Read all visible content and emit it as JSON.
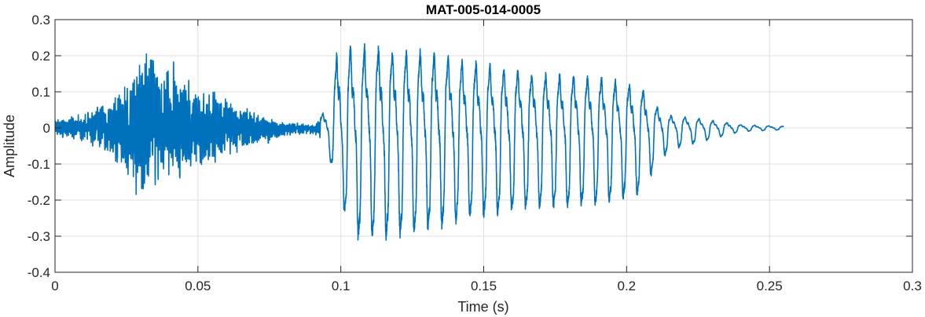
{
  "chart_data": {
    "type": "line",
    "title": "MAT-005-014-0005",
    "xlabel": "Time (s)",
    "ylabel": "Amplitude",
    "xlim": [
      0,
      0.3
    ],
    "ylim": [
      -0.4,
      0.3
    ],
    "x_ticks": [
      0,
      0.05,
      0.1,
      0.15,
      0.2,
      0.25,
      0.3
    ],
    "x_tick_labels": [
      "0",
      "0.05",
      "0.1",
      "0.15",
      "0.2",
      "0.25",
      "0.3"
    ],
    "y_ticks": [
      0.3,
      0.2,
      0.1,
      0,
      -0.1,
      -0.2,
      -0.3,
      -0.4
    ],
    "y_tick_labels": [
      "0.3",
      "0.2",
      "0.1",
      "0",
      "-0.1",
      "-0.2",
      "-0.3",
      "-0.4"
    ],
    "grid": true,
    "line_color": "#0072BD",
    "series": [
      {
        "x_range": [
          0,
          0.255
        ],
        "envelope": [
          {
            "t": 0.0,
            "max": 0.03,
            "min": -0.03
          },
          {
            "t": 0.01,
            "max": 0.05,
            "min": -0.05
          },
          {
            "t": 0.02,
            "max": 0.1,
            "min": -0.1
          },
          {
            "t": 0.025,
            "max": 0.16,
            "min": -0.17
          },
          {
            "t": 0.028,
            "max": 0.2,
            "min": -0.2
          },
          {
            "t": 0.033,
            "max": 0.25,
            "min": -0.22
          },
          {
            "t": 0.04,
            "max": 0.22,
            "min": -0.18
          },
          {
            "t": 0.05,
            "max": 0.14,
            "min": -0.13
          },
          {
            "t": 0.06,
            "max": 0.09,
            "min": -0.1
          },
          {
            "t": 0.07,
            "max": 0.05,
            "min": -0.06
          },
          {
            "t": 0.08,
            "max": 0.02,
            "min": -0.03
          },
          {
            "t": 0.09,
            "max": 0.01,
            "min": -0.02
          },
          {
            "t": 0.095,
            "max": 0.06,
            "min": -0.04
          },
          {
            "t": 0.099,
            "max": 0.25,
            "min": -0.19
          },
          {
            "t": 0.105,
            "max": 0.26,
            "min": -0.3
          },
          {
            "t": 0.115,
            "max": 0.25,
            "min": -0.3
          },
          {
            "t": 0.13,
            "max": 0.24,
            "min": -0.28
          },
          {
            "t": 0.15,
            "max": 0.2,
            "min": -0.24
          },
          {
            "t": 0.17,
            "max": 0.17,
            "min": -0.22
          },
          {
            "t": 0.19,
            "max": 0.16,
            "min": -0.21
          },
          {
            "t": 0.205,
            "max": 0.13,
            "min": -0.18
          },
          {
            "t": 0.21,
            "max": 0.07,
            "min": -0.11
          },
          {
            "t": 0.215,
            "max": 0.04,
            "min": -0.06
          },
          {
            "t": 0.225,
            "max": 0.03,
            "min": -0.04
          },
          {
            "t": 0.24,
            "max": 0.01,
            "min": -0.01
          },
          {
            "t": 0.255,
            "max": 0.005,
            "min": -0.005
          }
        ]
      }
    ]
  }
}
